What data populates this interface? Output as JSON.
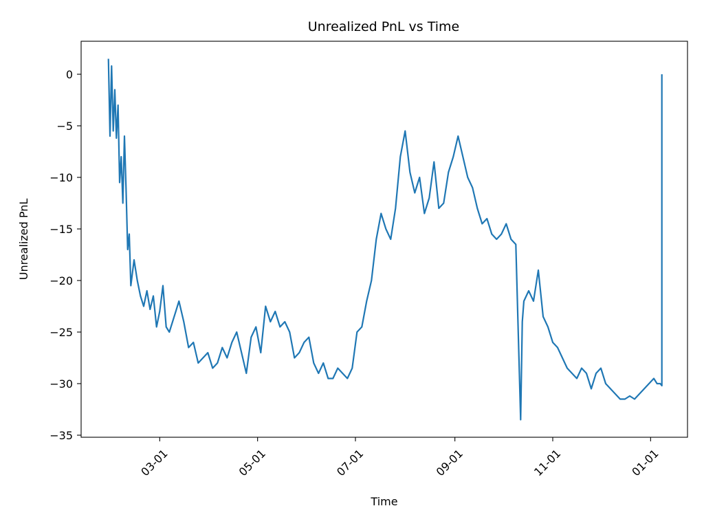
{
  "chart_data": {
    "type": "line",
    "title": "Unrealized PnL vs Time",
    "xlabel": "Time",
    "ylabel": "Unrealized PnL",
    "ylim": [
      -35.2,
      3.2
    ],
    "xlim": [
      "2023-01-11",
      "2024-01-24"
    ],
    "grid": false,
    "legend": "none",
    "line_color": "#1f77b4",
    "y_ticks": [
      0,
      -5,
      -10,
      -15,
      -20,
      -25,
      -30,
      -35
    ],
    "y_tick_labels": [
      "0",
      "−5",
      "−10",
      "−15",
      "−20",
      "−25",
      "−30",
      "−35"
    ],
    "x_ticks": [
      "2023-03-01",
      "2023-05-01",
      "2023-07-01",
      "2023-09-01",
      "2023-11-01",
      "2024-01-01"
    ],
    "x_tick_labels": [
      "03-01",
      "05-01",
      "07-01",
      "09-01",
      "11-01",
      "01-01"
    ],
    "series": [
      {
        "x": [
          "2023-01-28",
          "2023-01-29",
          "2023-01-30",
          "2023-01-31",
          "2023-02-01",
          "2023-02-02",
          "2023-02-03",
          "2023-02-04",
          "2023-02-05",
          "2023-02-06",
          "2023-02-07",
          "2023-02-08",
          "2023-02-09",
          "2023-02-10",
          "2023-02-11",
          "2023-02-13",
          "2023-02-15",
          "2023-02-17",
          "2023-02-19",
          "2023-02-21",
          "2023-02-23",
          "2023-02-25",
          "2023-02-27",
          "2023-03-01",
          "2023-03-03",
          "2023-03-05",
          "2023-03-07",
          "2023-03-09",
          "2023-03-11",
          "2023-03-13",
          "2023-03-16",
          "2023-03-19",
          "2023-03-22",
          "2023-03-25",
          "2023-03-28",
          "2023-03-31",
          "2023-04-03",
          "2023-04-06",
          "2023-04-09",
          "2023-04-12",
          "2023-04-15",
          "2023-04-18",
          "2023-04-21",
          "2023-04-24",
          "2023-04-27",
          "2023-04-30",
          "2023-05-03",
          "2023-05-06",
          "2023-05-09",
          "2023-05-12",
          "2023-05-15",
          "2023-05-18",
          "2023-05-21",
          "2023-05-24",
          "2023-05-27",
          "2023-05-30",
          "2023-06-02",
          "2023-06-05",
          "2023-06-08",
          "2023-06-11",
          "2023-06-14",
          "2023-06-17",
          "2023-06-20",
          "2023-06-23",
          "2023-06-26",
          "2023-06-29",
          "2023-07-02",
          "2023-07-05",
          "2023-07-08",
          "2023-07-11",
          "2023-07-14",
          "2023-07-17",
          "2023-07-20",
          "2023-07-23",
          "2023-07-26",
          "2023-07-29",
          "2023-08-01",
          "2023-08-04",
          "2023-08-07",
          "2023-08-10",
          "2023-08-13",
          "2023-08-16",
          "2023-08-19",
          "2023-08-22",
          "2023-08-25",
          "2023-08-28",
          "2023-08-31",
          "2023-09-03",
          "2023-09-06",
          "2023-09-09",
          "2023-09-12",
          "2023-09-15",
          "2023-09-18",
          "2023-09-21",
          "2023-09-24",
          "2023-09-27",
          "2023-09-30",
          "2023-10-03",
          "2023-10-06",
          "2023-10-09",
          "2023-10-12",
          "2023-10-13",
          "2023-10-14",
          "2023-10-17",
          "2023-10-20",
          "2023-10-23",
          "2023-10-26",
          "2023-10-29",
          "2023-11-01",
          "2023-11-04",
          "2023-11-07",
          "2023-11-10",
          "2023-11-13",
          "2023-11-16",
          "2023-11-19",
          "2023-11-22",
          "2023-11-25",
          "2023-11-28",
          "2023-12-01",
          "2023-12-04",
          "2023-12-07",
          "2023-12-10",
          "2023-12-13",
          "2023-12-16",
          "2023-12-19",
          "2023-12-22",
          "2023-12-25",
          "2023-12-28",
          "2023-12-31",
          "2024-01-03",
          "2024-01-05",
          "2024-01-07",
          "2024-01-08",
          "2024-01-08"
        ],
        "y": [
          1.5,
          -6.0,
          0.8,
          -5.5,
          -1.5,
          -6.2,
          -3.0,
          -10.5,
          -8.0,
          -12.5,
          -6.0,
          -11.0,
          -17.0,
          -15.5,
          -20.5,
          -18.0,
          -20.0,
          -21.5,
          -22.5,
          -21.0,
          -22.8,
          -21.5,
          -24.5,
          -23.0,
          -20.5,
          -24.5,
          -25.0,
          -24.0,
          -23.0,
          -22.0,
          -24.0,
          -26.5,
          -26.0,
          -28.0,
          -27.5,
          -27.0,
          -28.5,
          -28.0,
          -26.5,
          -27.5,
          -26.0,
          -25.0,
          -27.0,
          -29.0,
          -25.5,
          -24.5,
          -27.0,
          -22.5,
          -24.0,
          -23.0,
          -24.5,
          -24.0,
          -25.0,
          -27.5,
          -27.0,
          -26.0,
          -25.5,
          -28.0,
          -29.0,
          -28.0,
          -29.5,
          -29.5,
          -28.5,
          -29.0,
          -29.5,
          -28.5,
          -25.0,
          -24.5,
          -22.0,
          -20.0,
          -16.0,
          -13.5,
          -15.0,
          -16.0,
          -13.0,
          -8.0,
          -5.5,
          -9.5,
          -11.5,
          -10.0,
          -13.5,
          -12.0,
          -8.5,
          -13.0,
          -12.5,
          -9.5,
          -8.0,
          -6.0,
          -8.0,
          -10.0,
          -11.0,
          -13.0,
          -14.5,
          -14.0,
          -15.5,
          -16.0,
          -15.5,
          -14.5,
          -16.0,
          -16.5,
          -33.5,
          -24.0,
          -22.0,
          -21.0,
          -22.0,
          -19.0,
          -23.5,
          -24.5,
          -26.0,
          -26.5,
          -27.5,
          -28.5,
          -29.0,
          -29.5,
          -28.5,
          -29.0,
          -30.5,
          -29.0,
          -28.5,
          -30.0,
          -30.5,
          -31.0,
          -31.5,
          -31.5,
          -31.2,
          -31.5,
          -31.0,
          -30.5,
          -30.0,
          -29.5,
          -30.0,
          -30.0,
          -30.2,
          0.0
        ]
      }
    ]
  }
}
